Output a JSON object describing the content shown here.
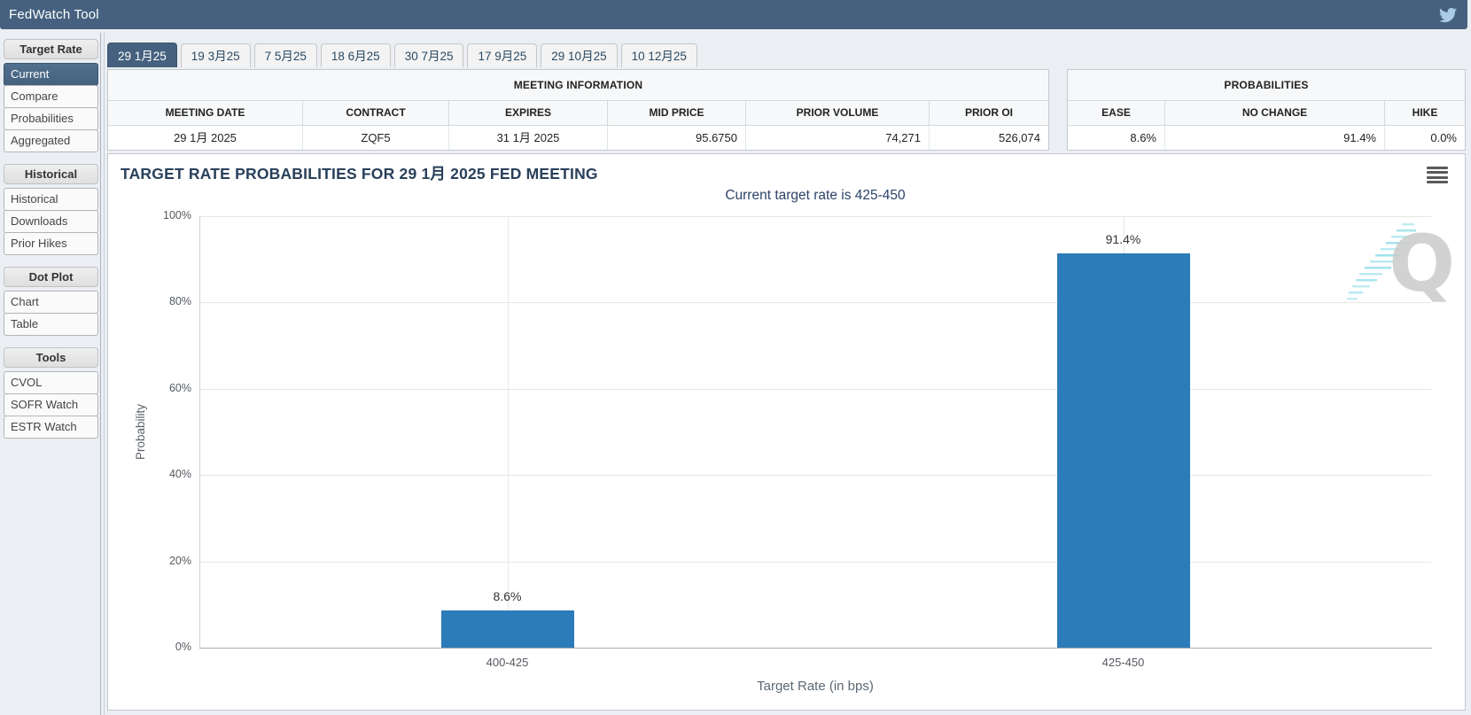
{
  "header": {
    "title": "FedWatch Tool",
    "twitter_icon": "twitter"
  },
  "sidebar": {
    "sections": [
      {
        "label": "Target Rate",
        "items": [
          {
            "label": "Current",
            "selected": true
          },
          {
            "label": "Compare",
            "selected": false
          },
          {
            "label": "Probabilities",
            "selected": false
          },
          {
            "label": "Aggregated",
            "selected": false
          }
        ]
      },
      {
        "label": "Historical",
        "items": [
          {
            "label": "Historical",
            "selected": false
          },
          {
            "label": "Downloads",
            "selected": false
          },
          {
            "label": "Prior Hikes",
            "selected": false
          }
        ]
      },
      {
        "label": "Dot Plot",
        "items": [
          {
            "label": "Chart",
            "selected": false
          },
          {
            "label": "Table",
            "selected": false
          }
        ]
      },
      {
        "label": "Tools",
        "items": [
          {
            "label": "CVOL",
            "selected": false
          },
          {
            "label": "SOFR Watch",
            "selected": false
          },
          {
            "label": "ESTR Watch",
            "selected": false
          }
        ]
      }
    ]
  },
  "tabs": [
    {
      "label": "29 1月25",
      "selected": true
    },
    {
      "label": "19 3月25",
      "selected": false
    },
    {
      "label": "7 5月25",
      "selected": false
    },
    {
      "label": "18 6月25",
      "selected": false
    },
    {
      "label": "30 7月25",
      "selected": false
    },
    {
      "label": "17 9月25",
      "selected": false
    },
    {
      "label": "29 10月25",
      "selected": false
    },
    {
      "label": "10 12月25",
      "selected": false
    }
  ],
  "meeting_info": {
    "title": "MEETING INFORMATION",
    "columns": [
      {
        "label": "MEETING DATE",
        "align": "center"
      },
      {
        "label": "CONTRACT",
        "align": "center"
      },
      {
        "label": "EXPIRES",
        "align": "center"
      },
      {
        "label": "MID PRICE",
        "align": "right"
      },
      {
        "label": "PRIOR VOLUME",
        "align": "right"
      },
      {
        "label": "PRIOR OI",
        "align": "right"
      }
    ],
    "values": [
      "29 1月 2025",
      "ZQF5",
      "31 1月 2025",
      "95.6750",
      "74,271",
      "526,074"
    ]
  },
  "probabilities": {
    "title": "PROBABILITIES",
    "columns": [
      {
        "label": "EASE",
        "align": "right"
      },
      {
        "label": "NO CHANGE",
        "align": "right"
      },
      {
        "label": "HIKE",
        "align": "right"
      }
    ],
    "values": [
      "8.6%",
      "91.4%",
      "0.0%"
    ]
  },
  "chart_data": {
    "type": "bar",
    "title": "TARGET RATE PROBABILITIES FOR 29 1月 2025 FED MEETING",
    "subtitle": "Current target rate is 425-450",
    "categories": [
      "400-425",
      "425-450"
    ],
    "values": [
      8.6,
      91.4
    ],
    "value_labels": [
      "8.6%",
      "91.4%"
    ],
    "xlabel": "Target Rate (in bps)",
    "ylabel": "Probability",
    "ylim": [
      0,
      100
    ],
    "yticks": [
      "0%",
      "20%",
      "40%",
      "60%",
      "80%",
      "100%"
    ],
    "bar_color": "#2B7CB8",
    "grid": true,
    "legend": "none",
    "watermark_letter": "Q"
  }
}
